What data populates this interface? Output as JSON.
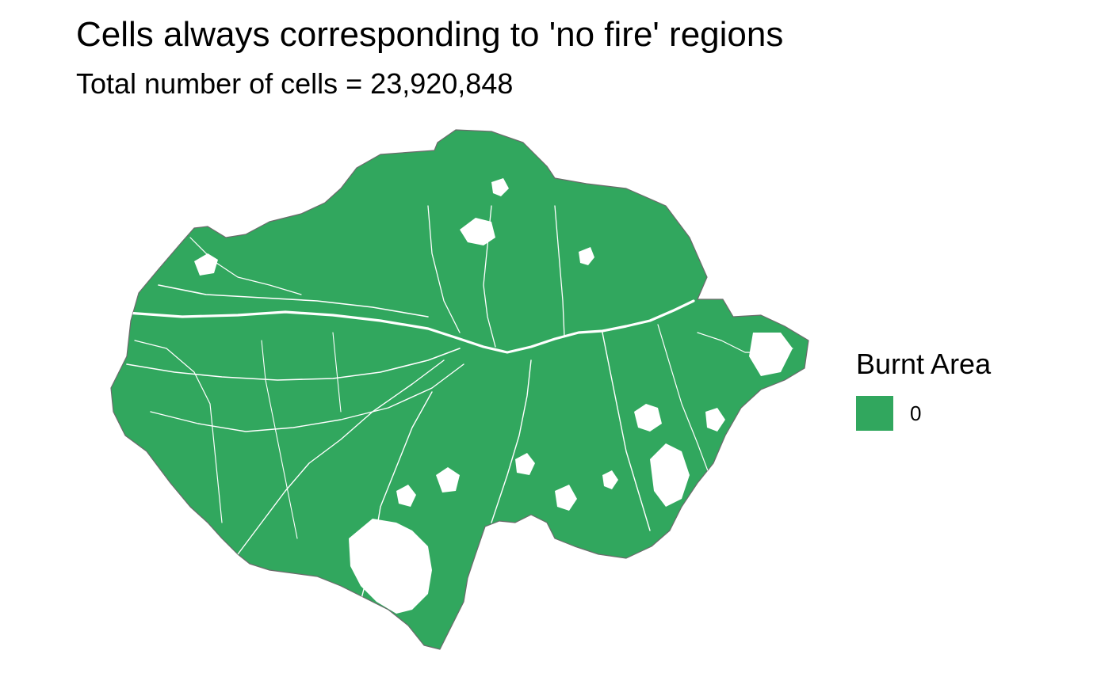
{
  "map": {
    "title": "Cells always corresponding to 'no fire' regions",
    "subtitle": "Total number of cells = 23,920,848",
    "region_fill": "#31A75E",
    "region_outline": "#6b6b6b",
    "background": "#ffffff"
  },
  "legend": {
    "title": "Burnt Area",
    "items": [
      {
        "label": "0",
        "color": "#31A75E"
      }
    ]
  }
}
